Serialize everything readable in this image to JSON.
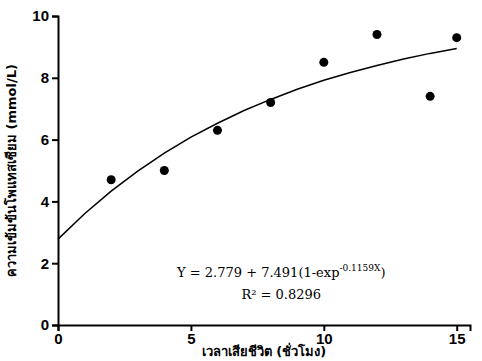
{
  "chart_data": {
    "type": "scatter",
    "x_label": "เวลาเสียชีวิต (ชั่วโมง)",
    "y_label": "ความเข้มข้นโพแทสเซียม (mmol/L)",
    "xlim": [
      0,
      15.5
    ],
    "ylim": [
      0,
      10
    ],
    "xticks": [
      0,
      5,
      10,
      15
    ],
    "yticks": [
      0,
      2,
      4,
      6,
      8,
      10
    ],
    "grid": false,
    "series": [
      {
        "type": "scatter",
        "color": "#000000",
        "marker": "circle",
        "x": [
          2,
          4,
          6,
          8,
          10,
          12,
          14,
          15
        ],
        "values": [
          4.7,
          5.0,
          6.3,
          7.2,
          8.5,
          9.4,
          7.4,
          9.3
        ]
      },
      {
        "type": "line",
        "color": "#000000",
        "line_style": "solid",
        "x": [
          0,
          1,
          2,
          3,
          4,
          5,
          6,
          7,
          8,
          9,
          10,
          11,
          12,
          13,
          14,
          15
        ],
        "values": [
          2.78,
          3.6,
          4.33,
          4.98,
          5.56,
          6.08,
          6.53,
          6.94,
          7.3,
          7.63,
          7.92,
          8.17,
          8.4,
          8.61,
          8.79,
          8.95
        ]
      }
    ],
    "annotations": [
      {
        "text": "Y = 2.779 + 7.491(1-exp",
        "superscript": "-0.1159X",
        "after": ")"
      },
      {
        "text": "R² = 0.8296"
      }
    ]
  }
}
